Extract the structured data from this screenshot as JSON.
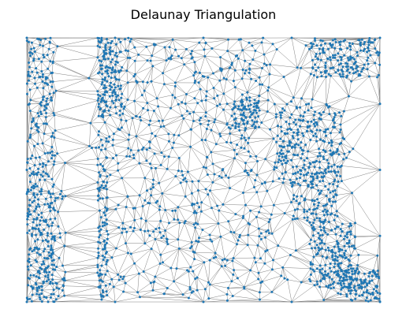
{
  "chart_data": {
    "type": "scatter",
    "subtype": "delaunay-triangulation",
    "title": "Delaunay Triangulation",
    "xlabel": "",
    "ylabel": "",
    "axes_visible": false,
    "grid": false,
    "legend": "none",
    "edge_color": "#808080",
    "point_color": "#1f77b4",
    "x_range": [
      0,
      1
    ],
    "y_range": [
      0,
      1
    ],
    "density_regions": [
      {
        "x": [
          0.0,
          0.08
        ],
        "y": [
          0.0,
          1.0
        ],
        "weight": 0.13
      },
      {
        "x": [
          0.0,
          0.11
        ],
        "y": [
          0.0,
          0.44
        ],
        "weight": 0.05
      },
      {
        "x": [
          0.2,
          0.27
        ],
        "y": [
          0.7,
          1.0
        ],
        "weight": 0.06
      },
      {
        "x": [
          0.17,
          0.23
        ],
        "y": [
          0.0,
          0.6
        ],
        "weight": 0.04
      },
      {
        "x": [
          0.7,
          0.9
        ],
        "y": [
          0.45,
          0.75
        ],
        "weight": 0.11
      },
      {
        "x": [
          0.75,
          0.88
        ],
        "y": [
          0.3,
          0.5
        ],
        "weight": 0.05
      },
      {
        "x": [
          0.8,
          1.0
        ],
        "y": [
          0.85,
          1.0
        ],
        "weight": 0.07
      },
      {
        "x": [
          0.8,
          0.95
        ],
        "y": [
          0.05,
          0.3
        ],
        "weight": 0.09
      },
      {
        "x": [
          0.88,
          1.0
        ],
        "y": [
          0.0,
          0.12
        ],
        "weight": 0.05
      },
      {
        "x": [
          0.58,
          0.66
        ],
        "y": [
          0.65,
          0.78
        ],
        "weight": 0.03
      },
      {
        "x": [
          0.2,
          0.7
        ],
        "y": [
          0.0,
          1.0
        ],
        "weight": 0.2
      },
      {
        "x": [
          0.0,
          1.0
        ],
        "y": [
          0.0,
          1.0
        ],
        "weight": 0.12
      }
    ],
    "sparse_regions": [
      {
        "x": [
          0.09,
          0.17
        ],
        "y": [
          0.6,
          1.0
        ]
      },
      {
        "x": [
          0.11,
          0.2
        ],
        "y": [
          0.0,
          0.58
        ]
      },
      {
        "x": [
          0.93,
          1.0
        ],
        "y": [
          0.2,
          0.85
        ]
      }
    ]
  }
}
